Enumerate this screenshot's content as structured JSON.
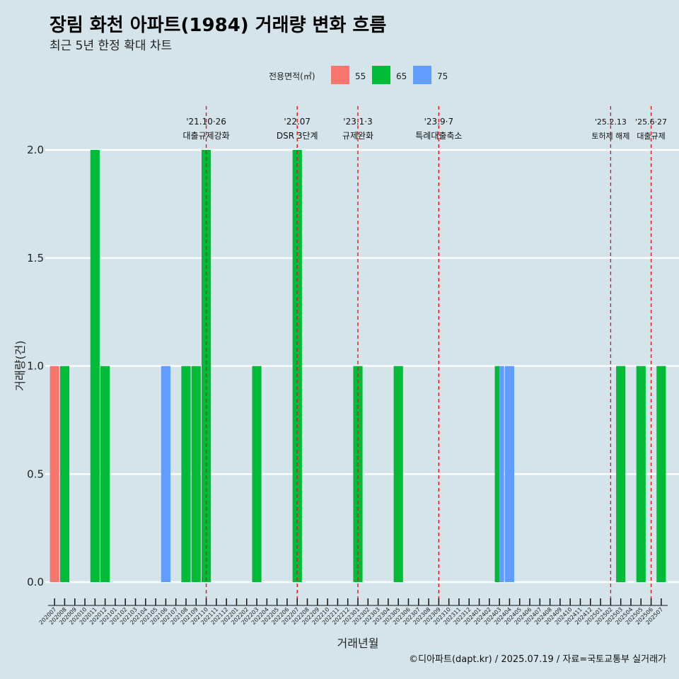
{
  "title": "장림 화천 아파트(1984) 거래량 변화 흐름",
  "subtitle": "최근 5년 한정 확대 차트",
  "caption": "©디아파트(dapt.kr) / 2025.07.19 / 자료=국토교통부 실거래가",
  "legend": {
    "title": "전용면적(㎡)",
    "items": [
      {
        "label": "55",
        "color": "#f8766d"
      },
      {
        "label": "65",
        "color": "#00ba38"
      },
      {
        "label": "75",
        "color": "#619cff"
      }
    ]
  },
  "chart_data": {
    "type": "bar",
    "xlabel": "거래년월",
    "ylabel": "거래량(건)",
    "ylim": [
      0,
      2
    ],
    "yticks": [
      "0.0",
      "0.5",
      "1.0",
      "1.5",
      "2.0"
    ],
    "grid": "horizontal",
    "legend_position": "top",
    "categories": [
      "202007",
      "202008",
      "202009",
      "202010",
      "202011",
      "202012",
      "202101",
      "202102",
      "202103",
      "202104",
      "202105",
      "202106",
      "202107",
      "202108",
      "202109",
      "202110",
      "202111",
      "202112",
      "202201",
      "202202",
      "202203",
      "202204",
      "202205",
      "202206",
      "202207",
      "202208",
      "202209",
      "202210",
      "202211",
      "202212",
      "202301",
      "202302",
      "202303",
      "202304",
      "202305",
      "202306",
      "202307",
      "202308",
      "202309",
      "202310",
      "202311",
      "202312",
      "202401",
      "202402",
      "202403",
      "202404",
      "202405",
      "202406",
      "202407",
      "202408",
      "202409",
      "202410",
      "202411",
      "202412",
      "202501",
      "202502",
      "202503",
      "202504",
      "202505",
      "202506",
      "202507"
    ],
    "bars": [
      {
        "category": "202007",
        "series": "55",
        "value": 1
      },
      {
        "category": "202008",
        "series": "65",
        "value": 1
      },
      {
        "category": "202011",
        "series": "65",
        "value": 2
      },
      {
        "category": "202012",
        "series": "65",
        "value": 1
      },
      {
        "category": "202106",
        "series": "75",
        "value": 1
      },
      {
        "category": "202108",
        "series": "65",
        "value": 1
      },
      {
        "category": "202109",
        "series": "65",
        "value": 1
      },
      {
        "category": "202110",
        "series": "65",
        "value": 2
      },
      {
        "category": "202203",
        "series": "65",
        "value": 1
      },
      {
        "category": "202207",
        "series": "65",
        "value": 2
      },
      {
        "category": "202301",
        "series": "65",
        "value": 1
      },
      {
        "category": "202305",
        "series": "65",
        "value": 1
      },
      {
        "category": "202403",
        "series": "65",
        "value": 1
      },
      {
        "category": "202403",
        "series": "75",
        "value": 1
      },
      {
        "category": "202404",
        "series": "75",
        "value": 1
      },
      {
        "category": "202503",
        "series": "65",
        "value": 1
      },
      {
        "category": "202505",
        "series": "65",
        "value": 1
      },
      {
        "category": "202507",
        "series": "65",
        "value": 1
      }
    ],
    "annotations": [
      {
        "category": "202110",
        "line1": "'21.10·26",
        "line2": "대출규제강화"
      },
      {
        "category": "202207",
        "line1": "'22.07",
        "line2": "DSR 3단계"
      },
      {
        "category": "202301",
        "line1": "'23.1·3",
        "line2": "규제완화"
      },
      {
        "category": "202309",
        "line1": "'23.9·7",
        "line2": "특례대출축소"
      },
      {
        "category": "202502",
        "line1": "'25.2.13",
        "line2": "토허제 해제"
      },
      {
        "category": "202506",
        "line1": "'25.6·27",
        "line2": "대출규제"
      }
    ]
  }
}
